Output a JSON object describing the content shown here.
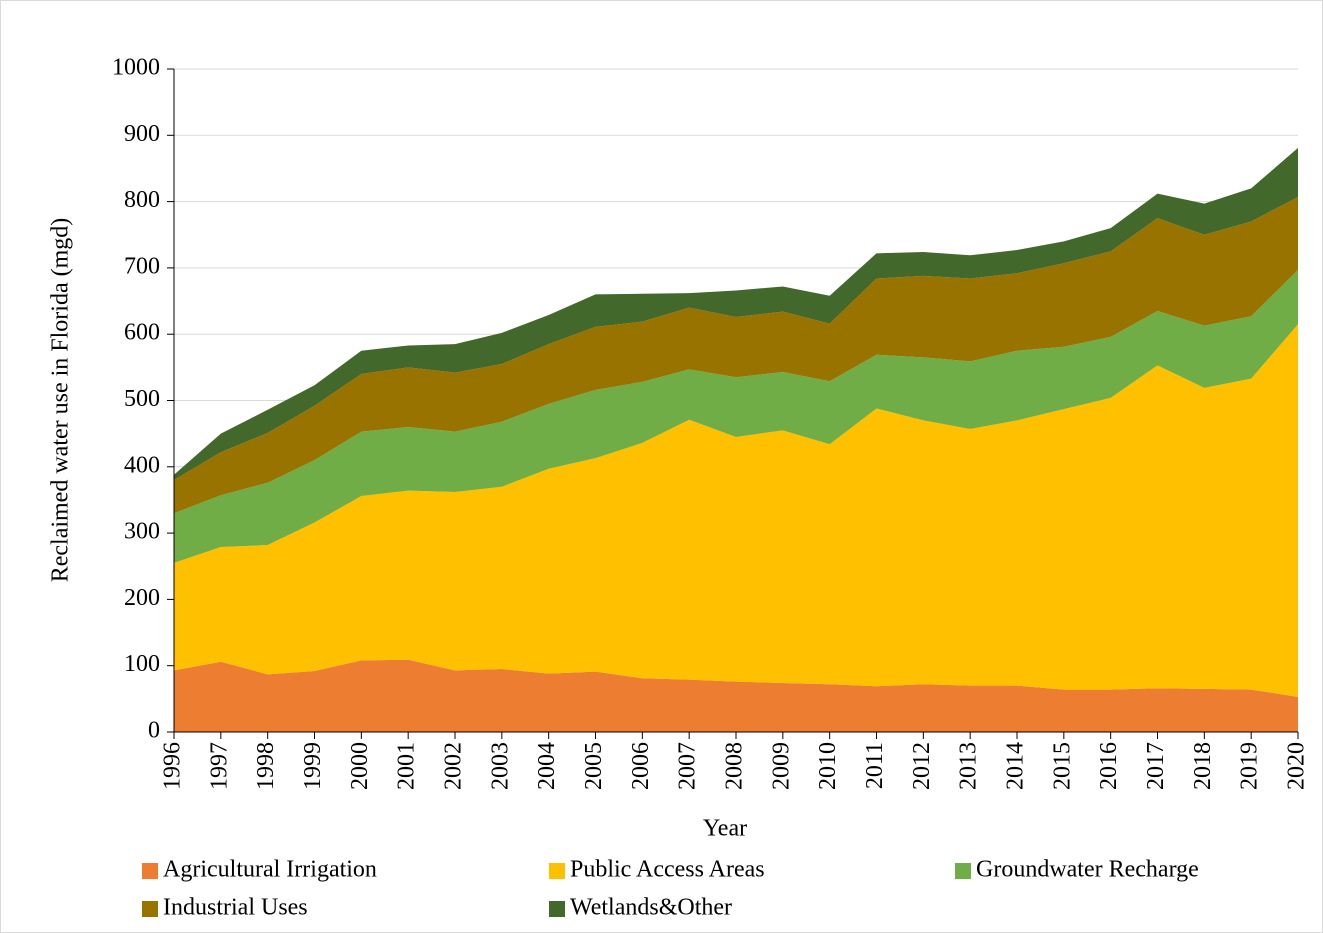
{
  "chart_data": {
    "type": "stacked_area",
    "x_label": "Year",
    "y_label": "Reclaimed water use in Florida (mgd)",
    "x": [
      1996,
      1997,
      1998,
      1999,
      2000,
      2001,
      2002,
      2003,
      2004,
      2005,
      2006,
      2007,
      2008,
      2009,
      2010,
      2011,
      2012,
      2013,
      2014,
      2015,
      2016,
      2017,
      2018,
      2019,
      2020
    ],
    "xlim": [
      1996,
      2020
    ],
    "xticks": [
      1996,
      1997,
      1998,
      1999,
      2000,
      2001,
      2002,
      2003,
      2004,
      2005,
      2006,
      2007,
      2008,
      2009,
      2010,
      2011,
      2012,
      2013,
      2014,
      2015,
      2016,
      2017,
      2018,
      2019,
      2020
    ],
    "ylim": [
      0,
      1000
    ],
    "yticks": [
      0,
      100,
      200,
      300,
      400,
      500,
      600,
      700,
      800,
      900,
      1000
    ],
    "grid": true,
    "legend": "bottom",
    "series": [
      {
        "name": "Agricultural Irrigation",
        "color": "#ED7D31",
        "values": [
          93,
          106,
          87,
          92,
          108,
          109,
          93,
          95,
          88,
          91,
          81,
          79,
          76,
          74,
          72,
          69,
          72,
          70,
          70,
          64,
          64,
          66,
          65,
          64,
          53
        ]
      },
      {
        "name": "Public Access Areas",
        "color": "#FFC000",
        "values": [
          162,
          173,
          195,
          224,
          248,
          255,
          269,
          275,
          309,
          322,
          355,
          392,
          369,
          381,
          362,
          419,
          398,
          387,
          400,
          423,
          440,
          487,
          454,
          469,
          562
        ]
      },
      {
        "name": "Groundwater Recharge",
        "color": "#70AD47",
        "values": [
          75,
          78,
          94,
          94,
          97,
          96,
          91,
          98,
          98,
          103,
          92,
          76,
          90,
          88,
          95,
          81,
          95,
          102,
          105,
          94,
          92,
          82,
          94,
          94,
          82
        ]
      },
      {
        "name": "Industrial Uses",
        "color": "#997300",
        "values": [
          50,
          65,
          75,
          82,
          87,
          90,
          89,
          87,
          90,
          95,
          91,
          93,
          91,
          91,
          87,
          115,
          123,
          125,
          117,
          126,
          129,
          140,
          137,
          143,
          110
        ]
      },
      {
        "name": "Wetlands&Other",
        "color": "#43682B",
        "values": [
          8,
          28,
          35,
          31,
          35,
          33,
          43,
          47,
          44,
          49,
          42,
          22,
          40,
          38,
          42,
          38,
          36,
          35,
          35,
          33,
          35,
          37,
          47,
          50,
          74
        ]
      }
    ]
  }
}
